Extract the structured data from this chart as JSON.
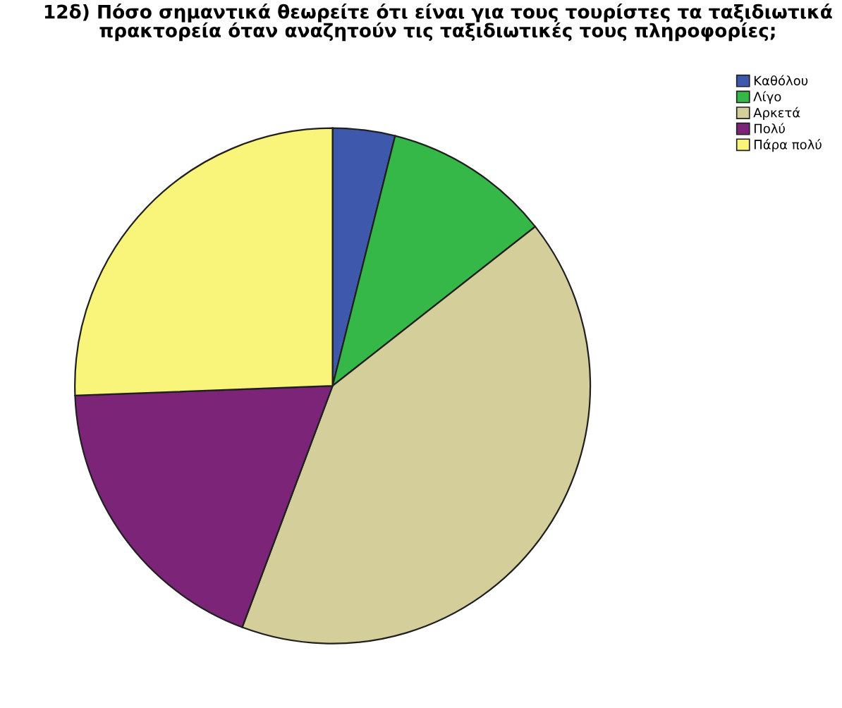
{
  "chart_data": {
    "type": "pie",
    "title": "12δ) Πόσο σημαντικά θεωρείτε ότι είναι για τους τουρίστες τα ταξιδιωτικά\nπρακτορεία όταν αναζητούν τις ταξιδιωτικές τους πληροφορίες;",
    "categories": [
      "Καθόλου",
      "Λίγο",
      "Αρκετά",
      "Πολύ",
      "Πάρα πολύ"
    ],
    "values": [
      3.9,
      10.5,
      41.3,
      18.7,
      25.6
    ],
    "colors": [
      "#3e58ac",
      "#35b848",
      "#d4cf9a",
      "#7b2478",
      "#f9f47a"
    ],
    "legend": "top right"
  }
}
